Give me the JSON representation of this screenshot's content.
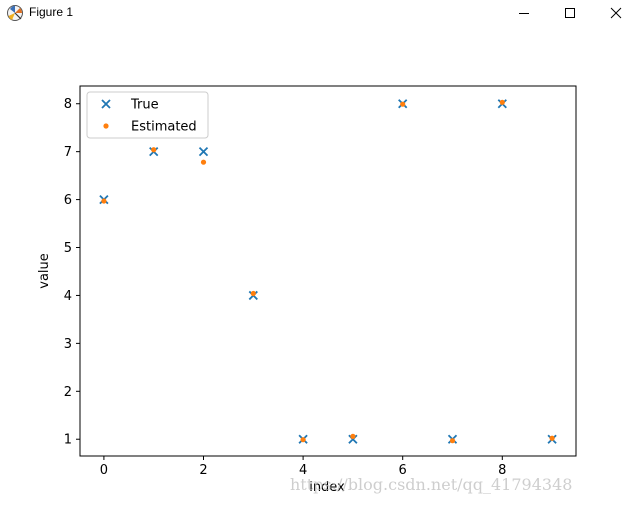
{
  "window": {
    "title": "Figure 1",
    "icon": "matplotlib-figure-icon",
    "controls": [
      "minimize-icon",
      "maximize-icon",
      "close-icon"
    ]
  },
  "chart_data": {
    "type": "scatter",
    "title": "",
    "xlabel": "index",
    "ylabel": "value",
    "xlim": [
      -0.48,
      9.48
    ],
    "ylim": [
      0.65,
      8.37
    ],
    "xticks": [
      0,
      2,
      4,
      6,
      8
    ],
    "yticks": [
      1,
      2,
      3,
      4,
      5,
      6,
      7,
      8
    ],
    "grid": false,
    "legend_position": "upper-left",
    "series": [
      {
        "name": "True",
        "marker": "x",
        "color": "#1f77b4",
        "x": [
          0,
          1,
          2,
          3,
          4,
          5,
          6,
          7,
          8,
          9
        ],
        "y": [
          6,
          7,
          7,
          4,
          1,
          1,
          8,
          1,
          8,
          1
        ]
      },
      {
        "name": "Estimated",
        "marker": "dot",
        "color": "#ff7f0e",
        "x": [
          0,
          1,
          2,
          3,
          4,
          5,
          6,
          7,
          8,
          9
        ],
        "y": [
          5.97,
          7.04,
          6.78,
          4.04,
          0.99,
          1.06,
          7.99,
          0.97,
          8.03,
          1.02
        ]
      }
    ]
  },
  "watermark": "https://blog.csdn.net/qq_41794348"
}
